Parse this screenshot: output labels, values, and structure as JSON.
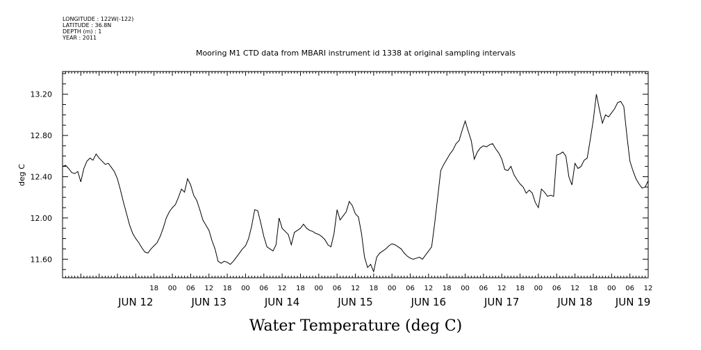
{
  "header": {
    "longitude": "LONGITUDE : 122W(-122)",
    "latitude": "LATITUDE : 36.8N",
    "depth": "DEPTH (m) : 1",
    "year": "YEAR : 2011"
  },
  "chart_data": {
    "type": "line",
    "title": "Mooring M1 CTD data from MBARI instrument id 1338 at original sampling intervals",
    "xlabel": "Water Temperature (deg C)",
    "ylabel": "deg C",
    "xlim": [
      -12,
      180
    ],
    "ylim": [
      11.42,
      13.42
    ],
    "x_unit": "hours since JUN 12 00:00",
    "yticks": [
      "11.60",
      "12.00",
      "12.40",
      "12.80",
      "13.20"
    ],
    "hour_ticks": [
      {
        "x": 18,
        "label": "18"
      },
      {
        "x": 24,
        "label": "00"
      },
      {
        "x": 30,
        "label": "06"
      },
      {
        "x": 36,
        "label": "12"
      },
      {
        "x": 42,
        "label": "18"
      },
      {
        "x": 48,
        "label": "00"
      },
      {
        "x": 54,
        "label": "06"
      },
      {
        "x": 60,
        "label": "12"
      },
      {
        "x": 66,
        "label": "18"
      },
      {
        "x": 72,
        "label": "00"
      },
      {
        "x": 78,
        "label": "06"
      },
      {
        "x": 84,
        "label": "12"
      },
      {
        "x": 90,
        "label": "18"
      },
      {
        "x": 96,
        "label": "00"
      },
      {
        "x": 102,
        "label": "06"
      },
      {
        "x": 108,
        "label": "12"
      },
      {
        "x": 114,
        "label": "18"
      },
      {
        "x": 120,
        "label": "00"
      },
      {
        "x": 126,
        "label": "06"
      },
      {
        "x": 132,
        "label": "12"
      },
      {
        "x": 138,
        "label": "18"
      },
      {
        "x": 144,
        "label": "00"
      },
      {
        "x": 150,
        "label": "06"
      },
      {
        "x": 156,
        "label": "12"
      },
      {
        "x": 162,
        "label": "18"
      },
      {
        "x": 168,
        "label": "00"
      },
      {
        "x": 174,
        "label": "06"
      },
      {
        "x": 180,
        "label": "12"
      }
    ],
    "day_ticks": [
      {
        "x": 12,
        "label": "JUN 12"
      },
      {
        "x": 36,
        "label": "JUN 13"
      },
      {
        "x": 60,
        "label": "JUN 14"
      },
      {
        "x": 84,
        "label": "JUN 15"
      },
      {
        "x": 108,
        "label": "JUN 16"
      },
      {
        "x": 132,
        "label": "JUN 17"
      },
      {
        "x": 156,
        "label": "JUN 18"
      },
      {
        "x": 175,
        "label": "JUN 19"
      }
    ],
    "series": [
      {
        "name": "Water Temperature",
        "x": [
          -12,
          -11,
          -10,
          -9,
          -8,
          -7,
          -6,
          -5,
          -4,
          -3,
          -2,
          -1,
          0,
          1,
          2,
          3,
          4,
          5,
          6,
          7,
          8,
          9,
          10,
          11,
          12,
          13,
          14,
          15,
          16,
          17,
          18,
          19,
          20,
          21,
          22,
          23,
          24,
          25,
          26,
          27,
          28,
          29,
          30,
          31,
          32,
          33,
          34,
          35,
          36,
          37,
          38,
          39,
          40,
          41,
          42,
          43,
          44,
          45,
          46,
          47,
          48,
          49,
          50,
          51,
          52,
          53,
          54,
          55,
          56,
          57,
          58,
          59,
          60,
          61,
          62,
          63,
          64,
          65,
          66,
          67,
          68,
          69,
          70,
          71,
          72,
          73,
          74,
          75,
          76,
          77,
          78,
          79,
          80,
          81,
          82,
          83,
          84,
          85,
          86,
          87,
          88,
          89,
          90,
          91,
          92,
          93,
          94,
          95,
          96,
          97,
          98,
          99,
          100,
          101,
          102,
          103,
          104,
          105,
          106,
          107,
          108,
          109,
          110,
          111,
          112,
          113,
          114,
          115,
          116,
          117,
          118,
          119,
          120,
          121,
          122,
          123,
          124,
          125,
          126,
          127,
          128,
          129,
          130,
          131,
          132,
          133,
          134,
          135,
          136,
          137,
          138,
          139,
          140,
          141,
          142,
          143,
          144,
          145,
          146,
          147,
          148,
          149,
          150,
          151,
          152,
          153,
          154,
          155,
          156,
          157,
          158,
          159,
          160,
          161,
          162,
          163,
          164,
          165,
          166,
          167,
          168,
          169,
          170,
          171,
          172,
          173,
          174,
          175,
          176,
          177,
          178,
          179,
          180
        ],
        "y": [
          12.5,
          12.51,
          12.48,
          12.44,
          12.43,
          12.45,
          12.35,
          12.48,
          12.55,
          12.58,
          12.56,
          12.62,
          12.58,
          12.55,
          12.52,
          12.53,
          12.49,
          12.45,
          12.38,
          12.27,
          12.15,
          12.04,
          11.93,
          11.85,
          11.8,
          11.76,
          11.71,
          11.67,
          11.66,
          11.7,
          11.73,
          11.76,
          11.82,
          11.9,
          12.0,
          12.06,
          12.1,
          12.13,
          12.2,
          12.28,
          12.25,
          12.38,
          12.32,
          12.22,
          12.17,
          12.08,
          11.98,
          11.93,
          11.88,
          11.78,
          11.7,
          11.58,
          11.56,
          11.58,
          11.57,
          11.55,
          11.58,
          11.62,
          11.66,
          11.7,
          11.73,
          11.8,
          11.92,
          12.08,
          12.07,
          11.95,
          11.82,
          11.72,
          11.7,
          11.68,
          11.74,
          12.0,
          11.9,
          11.87,
          11.84,
          11.74,
          11.86,
          11.88,
          11.9,
          11.94,
          11.9,
          11.88,
          11.87,
          11.85,
          11.84,
          11.82,
          11.79,
          11.74,
          11.72,
          11.85,
          12.08,
          11.98,
          12.02,
          12.06,
          12.16,
          12.12,
          12.04,
          12.01,
          11.85,
          11.62,
          11.52,
          11.55,
          11.48,
          11.62,
          11.66,
          11.68,
          11.7,
          11.73,
          11.75,
          11.74,
          11.72,
          11.7,
          11.66,
          11.63,
          11.61,
          11.6,
          11.61,
          11.62,
          11.6,
          11.64,
          11.68,
          11.72,
          11.95,
          12.2,
          12.46,
          12.52,
          12.57,
          12.62,
          12.66,
          12.72,
          12.75,
          12.85,
          12.94,
          12.84,
          12.75,
          12.57,
          12.64,
          12.68,
          12.7,
          12.69,
          12.71,
          12.72,
          12.67,
          12.63,
          12.57,
          12.47,
          12.46,
          12.5,
          12.42,
          12.37,
          12.33,
          12.3,
          12.24,
          12.27,
          12.24,
          12.15,
          12.1,
          12.28,
          12.25,
          12.21,
          12.22,
          12.21,
          12.61,
          12.62,
          12.64,
          12.6,
          12.4,
          12.32,
          12.53,
          12.48,
          12.5,
          12.56,
          12.58,
          12.76,
          12.95,
          13.2,
          13.05,
          12.92,
          13.0,
          12.98,
          13.02,
          13.06,
          13.12,
          13.13,
          13.08,
          12.8,
          12.55,
          12.46,
          12.38,
          12.33,
          12.29,
          12.3,
          12.36
        ]
      }
    ]
  }
}
